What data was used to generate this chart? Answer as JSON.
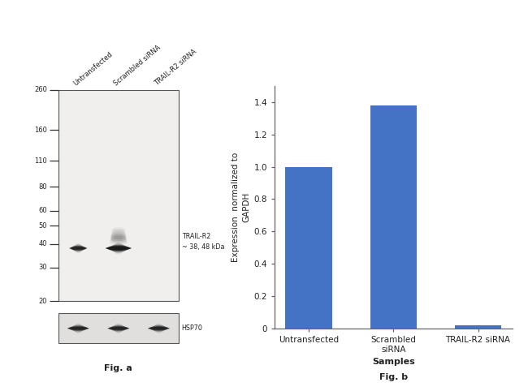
{
  "fig_width": 6.5,
  "fig_height": 4.82,
  "dpi": 100,
  "background_color": "#ffffff",
  "wb_panel": {
    "lane_labels": [
      "Untransfected",
      "Scrambled siRNA",
      "TRAIL-R2 siRNA"
    ],
    "mw_markers": [
      260,
      160,
      110,
      80,
      60,
      50,
      40,
      30,
      20
    ],
    "main_label": "TRAIL-R2",
    "main_sublabel": "~ 38, 48 kDa",
    "loading_label": "HSP70",
    "fig_label": "Fig. a",
    "blot_bg": "#f0efee",
    "lc_bg": "#e0dfde"
  },
  "bar_panel": {
    "categories": [
      "Untransfected",
      "Scrambled\nsiRNA",
      "TRAIL-R2 siRNA"
    ],
    "values": [
      1.0,
      1.38,
      0.02
    ],
    "bar_color": "#4472C4",
    "ylabel": "Expression  normalized to\nGAPDH",
    "xlabel": "Samples",
    "yticks": [
      0,
      0.2,
      0.4,
      0.6,
      0.8,
      1.0,
      1.2,
      1.4
    ],
    "ylim": [
      0,
      1.5
    ],
    "fig_label": "Fig. b"
  }
}
